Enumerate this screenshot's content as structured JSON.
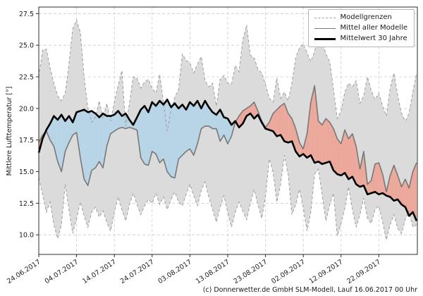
{
  "ylabel": "Mittlere Lufttemperatur [°]",
  "caption": "(c) Donnerwetter.de GmbH SLM-Modell, Lauf 16.06.2017 00 Uhr",
  "chart_data": {
    "type": "line",
    "title": "",
    "xlabel": "",
    "ylabel": "Mittlere Lufttemperatur [°]",
    "grid": true,
    "legend_position": "upper right",
    "legend": [
      "Modellgrenzen",
      "Mittel aller Modelle",
      "Mittelwert 30 Jahre"
    ],
    "ylim": [
      8.45,
      28.02
    ],
    "xlim_days": [
      0,
      100.2
    ],
    "y_tick_values": [
      10.0,
      12.5,
      15.0,
      17.5,
      20.0,
      22.5,
      25.0,
      27.5
    ],
    "y_tick_labels": [
      "10.0",
      "12.5",
      "15.0",
      "17.5",
      "20.0",
      "22.5",
      "25.0",
      "27.5"
    ],
    "x_tick_days": [
      0,
      10,
      20,
      30,
      40,
      50,
      60,
      70,
      80,
      90
    ],
    "x_tick_labels": [
      "24.06.2017",
      "04.07.2017",
      "14.07.2017",
      "24.07.2017",
      "03.08.2017",
      "13.08.2017",
      "23.08.2017",
      "02.09.2017",
      "12.09.2017",
      "22.09.2017"
    ],
    "x_unit": "days since 24.06.2017, daily values",
    "colors": {
      "band_fill": "#dbdbdb",
      "band_edge": "#9e9e9e",
      "below_climate_fill": "#b7d5e7",
      "above_climate_fill": "#eba89b",
      "model_mean_line": "#787878",
      "climate_mean_line": "#000000",
      "grid": "#cccccc",
      "frame": "#2b2b2b"
    },
    "series": [
      {
        "name": "Modellgrenzen",
        "role": "band",
        "min": [
          14.5,
          13.2,
          11.8,
          12.6,
          10.8,
          9.7,
          10.8,
          14.0,
          12.0,
          10.1,
          11.3,
          12.6,
          11.5,
          10.6,
          11.8,
          12.2,
          11.4,
          11.9,
          11.0,
          10.3,
          11.8,
          13.0,
          12.0,
          11.1,
          12.4,
          13.3,
          12.4,
          11.6,
          12.3,
          12.8,
          12.5,
          13.3,
          12.4,
          13.0,
          12.0,
          12.8,
          13.4,
          12.6,
          12.3,
          13.2,
          14.0,
          13.1,
          12.3,
          13.5,
          14.2,
          13.0,
          12.0,
          11.0,
          12.2,
          13.1,
          11.8,
          10.6,
          11.8,
          12.6,
          11.9,
          11.2,
          12.5,
          13.6,
          12.4,
          11.3,
          13.0,
          16.0,
          15.0,
          12.6,
          14.0,
          16.3,
          14.8,
          11.6,
          12.4,
          13.6,
          12.2,
          10.3,
          11.8,
          14.8,
          15.2,
          13.2,
          11.1,
          12.4,
          13.3,
          9.9,
          10.9,
          12.1,
          13.8,
          12.0,
          10.6,
          11.6,
          12.9,
          11.3,
          10.9,
          12.0,
          12.3,
          11.0,
          9.6,
          10.8,
          11.6,
          10.5,
          10.1,
          11.2,
          11.9,
          10.6,
          10.8
        ],
        "max": [
          22.5,
          24.6,
          24.7,
          23.2,
          22.0,
          21.0,
          20.6,
          21.2,
          23.5,
          26.3,
          27.0,
          26.0,
          22.5,
          20.0,
          18.9,
          19.3,
          20.6,
          19.2,
          20.4,
          19.0,
          20.5,
          21.8,
          23.0,
          18.6,
          20.4,
          22.5,
          22.4,
          21.6,
          22.1,
          22.3,
          21.6,
          21.2,
          22.7,
          20.5,
          18.2,
          19.8,
          20.9,
          21.5,
          24.3,
          23.8,
          23.6,
          22.8,
          23.5,
          24.1,
          22.2,
          21.7,
          22.0,
          20.2,
          22.3,
          22.6,
          22.0,
          21.9,
          23.4,
          22.9,
          25.4,
          26.6,
          24.2,
          24.0,
          23.1,
          22.8,
          21.9,
          20.8,
          20.5,
          22.4,
          20.8,
          21.3,
          20.6,
          22.0,
          24.0,
          24.8,
          25.1,
          24.4,
          23.7,
          24.5,
          25.7,
          25.3,
          24.3,
          23.7,
          21.5,
          19.2,
          19.8,
          21.3,
          22.0,
          21.7,
          22.2,
          20.4,
          21.0,
          22.5,
          21.4,
          20.7,
          21.2,
          20.2,
          19.4,
          21.6,
          22.8,
          21.0,
          19.6,
          19.0,
          19.6,
          21.3,
          22.8
        ]
      },
      {
        "name": "Mittel aller Modelle",
        "role": "line",
        "values": [
          17.3,
          17.9,
          18.2,
          17.5,
          17.0,
          15.8,
          15.0,
          16.6,
          17.3,
          17.9,
          18.1,
          16.1,
          14.4,
          13.9,
          15.1,
          15.3,
          15.8,
          15.3,
          17.0,
          18.0,
          18.2,
          18.4,
          18.5,
          18.4,
          18.5,
          18.4,
          18.3,
          16.1,
          15.6,
          15.5,
          16.6,
          16.4,
          15.7,
          16.0,
          15.0,
          14.6,
          14.5,
          16.0,
          16.3,
          16.6,
          16.8,
          16.3,
          17.2,
          18.4,
          18.6,
          18.6,
          18.4,
          18.4,
          17.4,
          17.9,
          17.2,
          17.8,
          18.9,
          19.4,
          19.8,
          20.0,
          20.2,
          20.5,
          19.8,
          19.0,
          18.5,
          18.9,
          19.6,
          19.9,
          20.2,
          20.4,
          19.6,
          19.2,
          18.4,
          17.3,
          16.8,
          18.0,
          20.5,
          21.8,
          19.0,
          18.7,
          19.2,
          18.9,
          18.4,
          17.6,
          17.2,
          18.3,
          17.6,
          18.0,
          17.0,
          15.2,
          16.6,
          14.0,
          14.3,
          15.6,
          15.7,
          14.8,
          13.4,
          14.7,
          15.5,
          14.7,
          13.8,
          14.4,
          13.7,
          15.0,
          15.7
        ]
      },
      {
        "name": "Mittelwert 30 Jahre",
        "role": "line",
        "values": [
          16.5,
          17.6,
          18.3,
          18.8,
          19.4,
          19.1,
          19.5,
          19.0,
          19.4,
          18.9,
          19.7,
          19.8,
          19.9,
          19.7,
          19.8,
          19.6,
          19.3,
          19.6,
          19.4,
          19.4,
          19.5,
          19.8,
          19.4,
          19.6,
          19.1,
          18.7,
          19.3,
          19.9,
          20.2,
          19.7,
          20.5,
          20.2,
          20.6,
          20.3,
          20.7,
          20.1,
          20.4,
          20.0,
          20.3,
          19.9,
          20.5,
          20.2,
          20.6,
          20.0,
          20.6,
          20.1,
          19.7,
          19.5,
          19.9,
          19.3,
          19.2,
          18.7,
          19.0,
          18.5,
          18.8,
          19.4,
          19.6,
          19.2,
          19.5,
          18.9,
          18.4,
          18.3,
          18.2,
          17.8,
          17.9,
          17.4,
          17.3,
          17.4,
          16.6,
          16.2,
          16.4,
          16.1,
          16.3,
          15.7,
          15.8,
          15.6,
          15.7,
          15.8,
          15.1,
          14.8,
          14.7,
          14.9,
          14.4,
          14.6,
          14.0,
          13.8,
          13.9,
          13.2,
          13.3,
          13.4,
          13.2,
          13.3,
          13.1,
          13.0,
          12.7,
          12.8,
          12.4,
          12.2,
          11.5,
          11.8,
          11.1
        ]
      }
    ]
  }
}
